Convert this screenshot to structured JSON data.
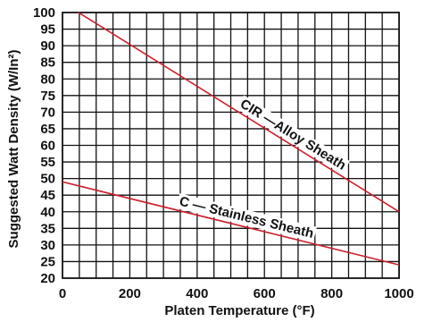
{
  "chart_data": {
    "type": "line",
    "title": "",
    "xlabel": "Platen Temperature (°F)",
    "ylabel": "Suggested Watt Density (W/In²)",
    "xlim": [
      0,
      1000
    ],
    "ylim": [
      20,
      100
    ],
    "x_ticks": [
      0,
      200,
      400,
      600,
      800,
      1000
    ],
    "y_ticks": [
      20,
      25,
      30,
      35,
      40,
      45,
      50,
      55,
      60,
      65,
      70,
      75,
      80,
      85,
      90,
      95,
      100
    ],
    "grid": true,
    "line_color": "#cc1f2b",
    "series": [
      {
        "name": "CIR —Alloy Sheath",
        "x": [
          0,
          1000
        ],
        "values": [
          103,
          40
        ]
      },
      {
        "name": "C — Stainless Sheath",
        "x": [
          0,
          1000
        ],
        "values": [
          49,
          24
        ]
      }
    ]
  }
}
